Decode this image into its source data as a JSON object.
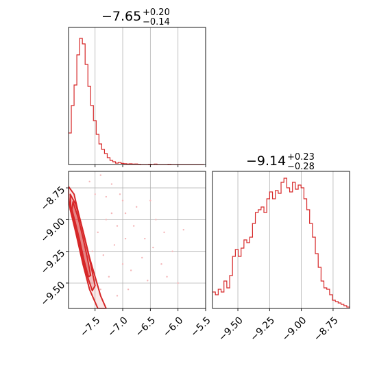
{
  "figure": {
    "panel_title_1": {
      "value": "−7.65",
      "plus": "+0.20",
      "minus": "−0.14"
    },
    "panel_title_2": {
      "value": "−9.14",
      "plus": "+0.23",
      "minus": "−0.28"
    }
  },
  "colors": {
    "accent": "#d62728",
    "grid": "#b0b0b0",
    "axis": "#000000",
    "scatter": "#f4b6b8"
  },
  "chart_data": [
    {
      "type": "histogram",
      "panel": "top-left",
      "xlim": [
        -7.98,
        -5.5
      ],
      "x_ticks": [
        -7.5,
        -7.0,
        -6.5,
        -6.0,
        -5.5
      ],
      "x_tick_labels": [],
      "grid": true,
      "bins": [
        [
          -7.98,
          0.23
        ],
        [
          -7.93,
          0.43
        ],
        [
          -7.88,
          0.58
        ],
        [
          -7.83,
          0.8
        ],
        [
          -7.78,
          0.92
        ],
        [
          -7.73,
          0.88
        ],
        [
          -7.68,
          0.73
        ],
        [
          -7.63,
          0.57
        ],
        [
          -7.58,
          0.43
        ],
        [
          -7.53,
          0.32
        ],
        [
          -7.48,
          0.22
        ],
        [
          -7.43,
          0.15
        ],
        [
          -7.38,
          0.11
        ],
        [
          -7.33,
          0.08
        ],
        [
          -7.28,
          0.05
        ],
        [
          -7.23,
          0.03
        ],
        [
          -7.18,
          0.02
        ],
        [
          -7.13,
          0.01
        ],
        [
          -7.08,
          0.015
        ],
        [
          -7.03,
          0.008
        ],
        [
          -6.98,
          0.006
        ],
        [
          -6.93,
          0.004
        ],
        [
          -6.88,
          0.005
        ],
        [
          -6.83,
          0.003
        ],
        [
          -6.78,
          0.004
        ],
        [
          -6.73,
          0.002
        ],
        [
          -6.68,
          0.0
        ],
        [
          -6.63,
          0.0
        ],
        [
          -6.58,
          0.0
        ],
        [
          -6.53,
          0.002
        ],
        [
          -6.48,
          0.0
        ],
        [
          -6.43,
          0.003
        ],
        [
          -6.38,
          0.0
        ],
        [
          -6.33,
          0.0
        ],
        [
          -6.28,
          0.0
        ],
        [
          -6.23,
          0.0
        ],
        [
          -6.18,
          0.002
        ],
        [
          -6.13,
          0.0
        ],
        [
          -6.08,
          0.0
        ],
        [
          -6.03,
          0.0
        ],
        [
          -5.98,
          0.0
        ],
        [
          -5.93,
          0.0
        ],
        [
          -5.88,
          0.0
        ],
        [
          -5.83,
          0.0
        ],
        [
          -5.78,
          0.0
        ],
        [
          -5.73,
          0.0
        ],
        [
          -5.68,
          0.0
        ],
        [
          -5.63,
          0.0
        ],
        [
          -5.58,
          0.0
        ]
      ],
      "bin_width": 0.05,
      "ylim": [
        0,
        1.0
      ]
    },
    {
      "type": "histogram",
      "panel": "bottom-right",
      "xlim": [
        -9.7,
        -8.62
      ],
      "x_ticks": [
        -9.5,
        -9.25,
        -9.0,
        -8.75
      ],
      "x_tick_labels": [
        "−9.50",
        "−9.25",
        "−9.00",
        "−8.75"
      ],
      "grid": true,
      "bins": [
        [
          -9.7,
          0.12
        ],
        [
          -9.677,
          0.1
        ],
        [
          -9.655,
          0.14
        ],
        [
          -9.632,
          0.12
        ],
        [
          -9.61,
          0.2
        ],
        [
          -9.587,
          0.15
        ],
        [
          -9.565,
          0.24
        ],
        [
          -9.542,
          0.38
        ],
        [
          -9.52,
          0.43
        ],
        [
          -9.497,
          0.38
        ],
        [
          -9.475,
          0.44
        ],
        [
          -9.452,
          0.5
        ],
        [
          -9.43,
          0.48
        ],
        [
          -9.407,
          0.52
        ],
        [
          -9.385,
          0.62
        ],
        [
          -9.362,
          0.7
        ],
        [
          -9.34,
          0.72
        ],
        [
          -9.317,
          0.74
        ],
        [
          -9.295,
          0.7
        ],
        [
          -9.272,
          0.8
        ],
        [
          -9.25,
          0.85
        ],
        [
          -9.227,
          0.8
        ],
        [
          -9.205,
          0.86
        ],
        [
          -9.182,
          0.84
        ],
        [
          -9.16,
          0.92
        ],
        [
          -9.137,
          0.95
        ],
        [
          -9.115,
          0.88
        ],
        [
          -9.092,
          0.85
        ],
        [
          -9.07,
          0.92
        ],
        [
          -9.047,
          0.87
        ],
        [
          -9.025,
          0.9
        ],
        [
          -9.002,
          0.88
        ],
        [
          -8.98,
          0.8
        ],
        [
          -8.957,
          0.72
        ],
        [
          -8.935,
          0.62
        ],
        [
          -8.912,
          0.52
        ],
        [
          -8.89,
          0.4
        ],
        [
          -8.867,
          0.3
        ],
        [
          -8.845,
          0.2
        ],
        [
          -8.822,
          0.15
        ],
        [
          -8.8,
          0.14
        ],
        [
          -8.777,
          0.1
        ],
        [
          -8.755,
          0.06
        ],
        [
          -8.732,
          0.05
        ],
        [
          -8.71,
          0.04
        ],
        [
          -8.687,
          0.03
        ],
        [
          -8.665,
          0.02
        ],
        [
          -8.642,
          0.01
        ]
      ],
      "bin_width": 0.0225,
      "ylim": [
        0,
        1.0
      ]
    },
    {
      "type": "scatter",
      "panel": "bottom-left",
      "description_of_axes": "2D posterior: x (same as panel 1), y (same as panel 2)",
      "xlim": [
        -7.98,
        -5.5
      ],
      "ylim": [
        -9.7,
        -8.62
      ],
      "x_ticks": [
        -7.5,
        -7.0,
        -6.5,
        -6.0,
        -5.5
      ],
      "x_tick_labels": [
        "−7.5",
        "−7.0",
        "−6.5",
        "−6.0",
        "−5.5"
      ],
      "y_ticks": [
        -8.75,
        -9.0,
        -9.25,
        -9.5
      ],
      "y_tick_labels": [
        "−8.75",
        "−9.00",
        "−9.25",
        "−9.50"
      ],
      "grid": true,
      "contours": [
        {
          "level": "outer",
          "points": [
            [
              -7.98,
              -8.74
            ],
            [
              -7.88,
              -8.8
            ],
            [
              -7.8,
              -8.95
            ],
            [
              -7.7,
              -9.12
            ],
            [
              -7.6,
              -9.3
            ],
            [
              -7.5,
              -9.45
            ],
            [
              -7.4,
              -9.6
            ],
            [
              -7.3,
              -9.7
            ],
            [
              -7.45,
              -9.7
            ],
            [
              -7.6,
              -9.55
            ],
            [
              -7.72,
              -9.35
            ],
            [
              -7.85,
              -9.1
            ],
            [
              -7.95,
              -8.92
            ],
            [
              -7.98,
              -8.82
            ]
          ]
        },
        {
          "level": "middle",
          "points": [
            [
              -7.95,
              -8.8
            ],
            [
              -7.85,
              -8.88
            ],
            [
              -7.76,
              -9.02
            ],
            [
              -7.67,
              -9.18
            ],
            [
              -7.58,
              -9.35
            ],
            [
              -7.5,
              -9.52
            ],
            [
              -7.55,
              -9.56
            ],
            [
              -7.66,
              -9.42
            ],
            [
              -7.76,
              -9.24
            ],
            [
              -7.86,
              -9.05
            ],
            [
              -7.94,
              -8.9
            ]
          ]
        },
        {
          "level": "inner",
          "points": [
            [
              -7.9,
              -8.86
            ],
            [
              -7.81,
              -8.98
            ],
            [
              -7.72,
              -9.14
            ],
            [
              -7.64,
              -9.3
            ],
            [
              -7.58,
              -9.44
            ],
            [
              -7.62,
              -9.45
            ],
            [
              -7.7,
              -9.32
            ],
            [
              -7.78,
              -9.16
            ],
            [
              -7.86,
              -9.02
            ],
            [
              -7.92,
              -8.92
            ]
          ]
        }
      ],
      "scatter_points": [
        [
          -7.6,
          -8.7
        ],
        [
          -7.4,
          -8.65
        ],
        [
          -7.2,
          -8.72
        ],
        [
          -7.05,
          -8.8
        ],
        [
          -6.95,
          -8.95
        ],
        [
          -6.8,
          -9.05
        ],
        [
          -6.6,
          -9.15
        ],
        [
          -6.45,
          -9.22
        ],
        [
          -6.3,
          -9.35
        ],
        [
          -6.55,
          -9.48
        ],
        [
          -6.2,
          -9.45
        ],
        [
          -6.1,
          -9.25
        ],
        [
          -5.9,
          -9.08
        ],
        [
          -6.0,
          -9.5
        ],
        [
          -7.3,
          -9.0
        ],
        [
          -7.15,
          -9.2
        ],
        [
          -7.0,
          -9.35
        ],
        [
          -6.9,
          -9.55
        ],
        [
          -7.1,
          -9.6
        ],
        [
          -7.25,
          -9.45
        ],
        [
          -7.35,
          -9.28
        ],
        [
          -7.45,
          -9.1
        ],
        [
          -7.2,
          -8.95
        ],
        [
          -7.0,
          -8.85
        ],
        [
          -6.75,
          -8.9
        ],
        [
          -6.65,
          -9.3
        ],
        [
          -6.85,
          -9.4
        ],
        [
          -7.4,
          -9.55
        ],
        [
          -7.5,
          -8.8
        ],
        [
          -7.3,
          -8.82
        ],
        [
          -6.4,
          -9.0
        ],
        [
          -6.25,
          -9.1
        ],
        [
          -7.1,
          -9.05
        ],
        [
          -7.55,
          -9.25
        ],
        [
          -6.95,
          -9.15
        ],
        [
          -6.5,
          -8.85
        ]
      ]
    }
  ]
}
